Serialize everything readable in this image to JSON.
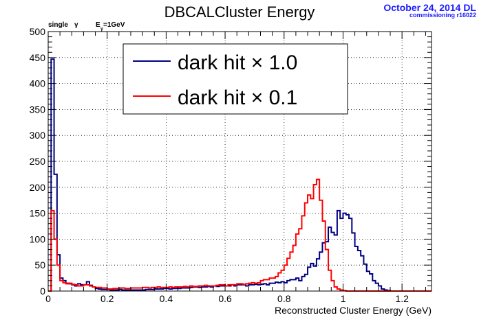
{
  "chart_data": {
    "type": "line",
    "title": "DBCALCluster Energy",
    "xlabel": "Reconstructed Cluster Energy (GeV)",
    "ylabel": "",
    "xlim": [
      0,
      1.3
    ],
    "ylim": [
      0,
      500
    ],
    "xticks": [
      "0",
      "0.2",
      "0.4",
      "0.6",
      "0.8",
      "1",
      "1.2"
    ],
    "yticks": [
      "0",
      "50",
      "100",
      "150",
      "200",
      "250",
      "300",
      "350",
      "400",
      "450",
      "500"
    ],
    "grid": true,
    "legend_position": "top-center",
    "annotation": {
      "single": "single",
      "gamma": "γ",
      "energy_e": "E",
      "energy_sub": "γ",
      "energy_value": "=1GeV"
    },
    "stamp": {
      "date": "October 24, 2014 DL",
      "run": "commissioning r16022"
    },
    "bin_width": 0.01,
    "series": [
      {
        "name": "dark hit × 1.0",
        "color": "#000080",
        "values": [
          0,
          447,
          225,
          70,
          25,
          20,
          15,
          14,
          12,
          10,
          14,
          12,
          12,
          18,
          11,
          8,
          5,
          4,
          3,
          3,
          3,
          2,
          2,
          2,
          3,
          2,
          2,
          2,
          2,
          2,
          2,
          2,
          2,
          3,
          3,
          3,
          4,
          4,
          4,
          5,
          5,
          4,
          5,
          5,
          5,
          6,
          6,
          6,
          7,
          8,
          8,
          7,
          8,
          8,
          9,
          8,
          10,
          9,
          10,
          10,
          10,
          10,
          12,
          10,
          12,
          12,
          12,
          10,
          12,
          12,
          13,
          12,
          13,
          14,
          12,
          15,
          15,
          17,
          16,
          18,
          16,
          20,
          22,
          22,
          25,
          20,
          28,
          32,
          46,
          53,
          48,
          62,
          75,
          93,
          95,
          123,
          113,
          108,
          155,
          140,
          150,
          147,
          140,
          112,
          86,
          78,
          68,
          52,
          38,
          33,
          20,
          15,
          10,
          4,
          2,
          1,
          0,
          0,
          0,
          0,
          0,
          0,
          0,
          0,
          0,
          0,
          0,
          0,
          0,
          0
        ]
      },
      {
        "name": "dark hit × 0.1",
        "color": "#ff0000",
        "values": [
          0,
          155,
          100,
          50,
          20,
          16,
          14,
          15,
          13,
          12,
          10,
          10,
          12,
          12,
          10,
          8,
          7,
          7,
          6,
          6,
          4,
          4,
          5,
          5,
          6,
          6,
          5,
          5,
          6,
          6,
          6,
          6,
          7,
          7,
          6,
          7,
          7,
          8,
          7,
          7,
          7,
          8,
          7,
          8,
          8,
          8,
          9,
          8,
          10,
          9,
          9,
          10,
          10,
          11,
          10,
          10,
          10,
          11,
          12,
          12,
          10,
          12,
          12,
          12,
          14,
          14,
          13,
          14,
          15,
          16,
          15,
          16,
          20,
          22,
          22,
          25,
          25,
          28,
          35,
          40,
          50,
          63,
          75,
          88,
          110,
          120,
          145,
          170,
          185,
          178,
          205,
          215,
          175,
          135,
          80,
          40,
          20,
          8,
          4,
          2,
          1,
          0,
          0,
          0,
          0,
          0,
          0,
          0,
          0,
          0,
          0,
          0,
          0,
          0,
          0,
          0,
          0,
          0,
          0,
          0,
          0,
          0,
          0,
          0,
          0,
          0,
          0,
          0,
          0,
          0
        ]
      }
    ]
  }
}
